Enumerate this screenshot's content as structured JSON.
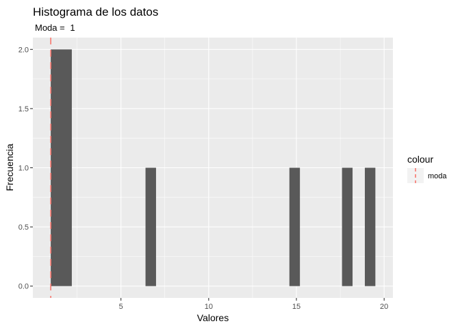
{
  "chart_data": {
    "type": "bar",
    "title": "Histograma de los datos",
    "subtitle_label": "Moda = ",
    "subtitle_value": "1",
    "xlabel": "Valores",
    "ylabel": "Frecuencia",
    "xlim": [
      -0.02,
      20.5
    ],
    "ylim": [
      -0.1,
      2.1
    ],
    "x_ticks": [
      5,
      10,
      15,
      20
    ],
    "x_tick_labels": [
      "5",
      "10",
      "15",
      "20"
    ],
    "y_ticks": [
      0.0,
      0.5,
      1.0,
      1.5,
      2.0
    ],
    "y_tick_labels": [
      "0.0",
      "0.5",
      "1.0",
      "1.5",
      "2.0"
    ],
    "bins": [
      {
        "x_start": 1.0,
        "x_end": 2.2,
        "count": 2
      },
      {
        "x_start": 6.4,
        "x_end": 7.0,
        "count": 1
      },
      {
        "x_start": 14.6,
        "x_end": 15.2,
        "count": 1
      },
      {
        "x_start": 17.6,
        "x_end": 18.2,
        "count": 1
      },
      {
        "x_start": 18.9,
        "x_end": 19.5,
        "count": 1
      }
    ],
    "mode_line": {
      "x": 1,
      "color": "#F8766D",
      "style": "dashed"
    },
    "bar_color": "#595959",
    "panel_color": "#EBEBEB",
    "grid": true,
    "legend": {
      "position": "right",
      "title": "colour",
      "items": [
        {
          "label": "moda",
          "color": "#F8766D"
        }
      ]
    }
  }
}
